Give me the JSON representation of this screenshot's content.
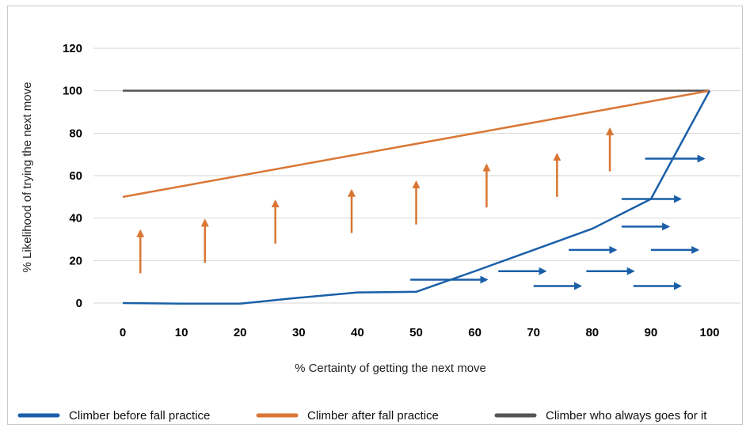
{
  "chart_data": {
    "type": "line",
    "xlabel": "% Certainty of getting the next move",
    "ylabel": "% Likelihood of trying the next move",
    "xlim": [
      0,
      100
    ],
    "ylim": [
      0,
      120
    ],
    "x_ticks": [
      "0",
      "10",
      "20",
      "30",
      "40",
      "50",
      "60",
      "70",
      "80",
      "90",
      "100"
    ],
    "y_ticks": [
      "0",
      "20",
      "40",
      "60",
      "80",
      "100",
      "120"
    ],
    "grid": "horizontal",
    "legend_position": "bottom",
    "series": [
      {
        "name": "Climber before fall practice",
        "color": "#1a5fa8",
        "points": [
          [
            0,
            0
          ],
          [
            10,
            -0.3
          ],
          [
            20,
            -0.3
          ],
          [
            30,
            2.5
          ],
          [
            40,
            5
          ],
          [
            50,
            5.3
          ],
          [
            60,
            15
          ],
          [
            70,
            25
          ],
          [
            80,
            35
          ],
          [
            90,
            49
          ],
          [
            100,
            100
          ]
        ]
      },
      {
        "name": "Climber after fall practice",
        "color": "#d97634",
        "points": [
          [
            0,
            50
          ],
          [
            100,
            100
          ]
        ]
      },
      {
        "name": "Climber who always goes for it",
        "color": "#555555",
        "points": [
          [
            0,
            100
          ],
          [
            100,
            100
          ]
        ]
      }
    ],
    "annotations": {
      "up_arrows": {
        "color": "#d97634",
        "items": [
          {
            "x": 3,
            "y_from": 14,
            "y_to": 34
          },
          {
            "x": 14,
            "y_from": 19,
            "y_to": 39
          },
          {
            "x": 26,
            "y_from": 28,
            "y_to": 48
          },
          {
            "x": 39,
            "y_from": 33,
            "y_to": 53
          },
          {
            "x": 50,
            "y_from": 37,
            "y_to": 57
          },
          {
            "x": 62,
            "y_from": 45,
            "y_to": 65
          },
          {
            "x": 74,
            "y_from": 50,
            "y_to": 70
          },
          {
            "x": 83,
            "y_from": 62,
            "y_to": 82
          }
        ]
      },
      "right_arrows": {
        "color": "#1a5fa8",
        "items": [
          {
            "y": 11,
            "x_from": 49,
            "x_to": 62
          },
          {
            "y": 15,
            "x_from": 64,
            "x_to": 72
          },
          {
            "y": 8,
            "x_from": 70,
            "x_to": 78
          },
          {
            "y": 25,
            "x_from": 76,
            "x_to": 84
          },
          {
            "y": 15,
            "x_from": 79,
            "x_to": 87
          },
          {
            "y": 8,
            "x_from": 87,
            "x_to": 95
          },
          {
            "y": 25,
            "x_from": 90,
            "x_to": 98
          },
          {
            "y": 36,
            "x_from": 85,
            "x_to": 93
          },
          {
            "y": 49,
            "x_from": 85,
            "x_to": 95
          },
          {
            "y": 68,
            "x_from": 89,
            "x_to": 99
          }
        ]
      }
    }
  }
}
